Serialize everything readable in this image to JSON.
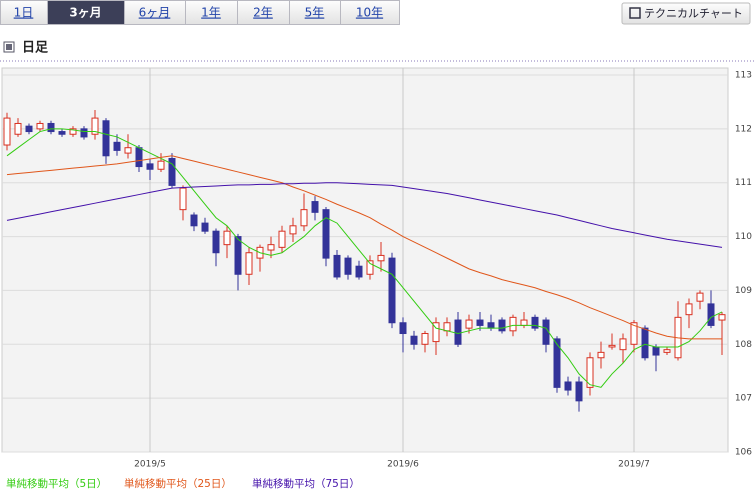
{
  "ui": {
    "tabs": [
      "1日",
      "3ヶ月",
      "6ヶ月",
      "1年",
      "2年",
      "5年",
      "10年"
    ],
    "active_tab": 1,
    "button": "テクニカルチャート",
    "section_title": "日足"
  },
  "chart_data": {
    "type": "candlestick",
    "categories": [
      null,
      null,
      null,
      null,
      null,
      null,
      null,
      null,
      null,
      null,
      null,
      null,
      null,
      "2019/5",
      null,
      null,
      null,
      null,
      null,
      null,
      null,
      null,
      null,
      null,
      null,
      null,
      null,
      null,
      null,
      null,
      null,
      null,
      null,
      null,
      null,
      null,
      "2019/6",
      null,
      null,
      null,
      null,
      null,
      null,
      null,
      null,
      null,
      null,
      null,
      null,
      null,
      null,
      null,
      null,
      null,
      null,
      null,
      null,
      "2019/7",
      null,
      null,
      null,
      null,
      null,
      null,
      null,
      null
    ],
    "open": [
      111.7,
      111.9,
      112.05,
      112.0,
      112.1,
      111.95,
      111.9,
      112.0,
      111.9,
      112.15,
      111.75,
      111.55,
      111.65,
      111.35,
      111.25,
      111.45,
      110.5,
      110.4,
      110.25,
      110.1,
      109.85,
      110.0,
      109.3,
      109.6,
      109.75,
      109.8,
      110.05,
      110.2,
      110.65,
      110.5,
      109.65,
      109.6,
      109.45,
      109.3,
      109.55,
      109.6,
      108.4,
      108.15,
      108.0,
      108.05,
      108.25,
      108.45,
      108.3,
      108.45,
      108.4,
      108.45,
      108.25,
      108.35,
      108.5,
      108.45,
      108.1,
      107.3,
      107.3,
      107.2,
      107.75,
      107.95,
      107.9,
      108.0,
      108.3,
      107.95,
      107.85,
      107.75,
      108.55,
      108.8,
      108.75,
      108.45
    ],
    "high": [
      112.3,
      112.2,
      112.1,
      112.15,
      112.15,
      112.0,
      112.05,
      112.05,
      112.35,
      112.2,
      111.9,
      111.9,
      111.7,
      111.45,
      111.55,
      111.55,
      110.95,
      110.45,
      110.35,
      110.15,
      110.2,
      110.05,
      109.8,
      109.85,
      110.0,
      110.2,
      110.35,
      110.8,
      110.75,
      110.55,
      109.75,
      109.65,
      109.55,
      109.65,
      109.9,
      109.7,
      108.5,
      108.25,
      108.25,
      108.5,
      108.5,
      108.6,
      108.55,
      108.6,
      108.55,
      108.5,
      108.55,
      108.6,
      108.55,
      108.5,
      108.15,
      107.4,
      107.4,
      107.85,
      108.05,
      108.2,
      108.2,
      108.45,
      108.35,
      108.0,
      107.95,
      108.8,
      108.85,
      109.0,
      109.0,
      108.6
    ],
    "low": [
      111.6,
      111.85,
      111.9,
      111.95,
      111.9,
      111.85,
      111.85,
      111.8,
      111.8,
      111.35,
      111.5,
      111.45,
      111.2,
      111.05,
      111.2,
      110.9,
      110.3,
      110.1,
      110.05,
      109.45,
      109.6,
      109.0,
      109.1,
      109.35,
      109.6,
      109.7,
      109.9,
      110.1,
      110.3,
      109.45,
      109.2,
      109.2,
      109.2,
      109.2,
      109.35,
      108.3,
      107.85,
      107.9,
      107.85,
      107.8,
      108.15,
      107.95,
      108.2,
      108.25,
      108.25,
      108.2,
      108.15,
      108.3,
      108.25,
      107.85,
      107.1,
      107.05,
      106.75,
      107.05,
      107.55,
      107.9,
      107.65,
      107.85,
      107.7,
      107.5,
      107.8,
      107.7,
      108.3,
      108.65,
      108.3,
      107.8
    ],
    "close": [
      112.2,
      112.1,
      111.95,
      112.1,
      111.95,
      111.9,
      112.0,
      111.85,
      112.2,
      111.5,
      111.6,
      111.65,
      111.3,
      111.25,
      111.4,
      110.95,
      110.9,
      110.2,
      110.1,
      109.7,
      110.1,
      109.3,
      109.7,
      109.8,
      109.85,
      110.1,
      110.2,
      110.5,
      110.45,
      109.6,
      109.25,
      109.3,
      109.25,
      109.55,
      109.65,
      108.4,
      108.2,
      108.0,
      108.2,
      108.4,
      108.4,
      108.0,
      108.45,
      108.35,
      108.3,
      108.25,
      108.5,
      108.45,
      108.3,
      108.0,
      107.2,
      107.15,
      106.95,
      107.75,
      107.85,
      107.98,
      108.1,
      108.4,
      107.75,
      107.8,
      107.9,
      108.5,
      108.75,
      108.95,
      108.35,
      108.55
    ],
    "up_color": "#d83020",
    "down_color": "#333399",
    "moving_averages": [
      {
        "name": "単純移動平均（5日）",
        "color": "#33cc11",
        "values": [
          111.5,
          111.65,
          111.8,
          111.95,
          112.0,
          112.0,
          111.98,
          111.95,
          111.95,
          111.9,
          111.85,
          111.75,
          111.65,
          111.55,
          111.45,
          111.35,
          111.1,
          110.85,
          110.6,
          110.35,
          110.2,
          109.95,
          109.8,
          109.7,
          109.65,
          109.7,
          109.85,
          110.0,
          110.2,
          110.35,
          110.25,
          110.0,
          109.75,
          109.5,
          109.4,
          109.3,
          109.05,
          108.8,
          108.55,
          108.3,
          108.25,
          108.2,
          108.25,
          108.3,
          108.3,
          108.3,
          108.35,
          108.35,
          108.35,
          108.3,
          108.0,
          107.75,
          107.45,
          107.25,
          107.2,
          107.45,
          107.65,
          107.9,
          108.0,
          107.95,
          107.95,
          107.95,
          108.05,
          108.25,
          108.5,
          108.6
        ]
      },
      {
        "name": "単純移動平均（25日）",
        "color": "#e0561a",
        "values": [
          111.15,
          111.17,
          111.19,
          111.21,
          111.23,
          111.25,
          111.27,
          111.29,
          111.31,
          111.33,
          111.35,
          111.38,
          111.41,
          111.44,
          111.47,
          111.5,
          111.45,
          111.4,
          111.35,
          111.3,
          111.25,
          111.2,
          111.15,
          111.1,
          111.05,
          111.0,
          110.92,
          110.85,
          110.77,
          110.69,
          110.6,
          110.52,
          110.44,
          110.35,
          110.23,
          110.12,
          110.0,
          109.9,
          109.8,
          109.7,
          109.6,
          109.5,
          109.4,
          109.33,
          109.27,
          109.2,
          109.15,
          109.1,
          109.05,
          108.98,
          108.92,
          108.85,
          108.77,
          108.68,
          108.6,
          108.52,
          108.44,
          108.35,
          108.28,
          108.21,
          108.15,
          108.12,
          108.1,
          108.1,
          108.1,
          108.1
        ]
      },
      {
        "name": "単純移動平均（75日）",
        "color": "#4411aa",
        "values": [
          110.3,
          110.34,
          110.38,
          110.42,
          110.46,
          110.5,
          110.54,
          110.58,
          110.62,
          110.66,
          110.7,
          110.74,
          110.78,
          110.82,
          110.86,
          110.9,
          110.91,
          110.92,
          110.93,
          110.94,
          110.95,
          110.96,
          110.96,
          110.97,
          110.97,
          110.98,
          110.98,
          110.99,
          110.99,
          111.0,
          111.0,
          110.99,
          110.98,
          110.97,
          110.96,
          110.95,
          110.92,
          110.89,
          110.86,
          110.83,
          110.8,
          110.76,
          110.72,
          110.68,
          110.64,
          110.6,
          110.56,
          110.52,
          110.48,
          110.44,
          110.4,
          110.35,
          110.3,
          110.25,
          110.2,
          110.15,
          110.11,
          110.07,
          110.03,
          109.99,
          109.95,
          109.92,
          109.89,
          109.86,
          109.83,
          109.8
        ]
      }
    ],
    "ylim": [
      106,
      113
    ],
    "yticks": [
      106,
      107,
      108,
      109,
      110,
      111,
      112,
      113
    ],
    "grid": true
  }
}
